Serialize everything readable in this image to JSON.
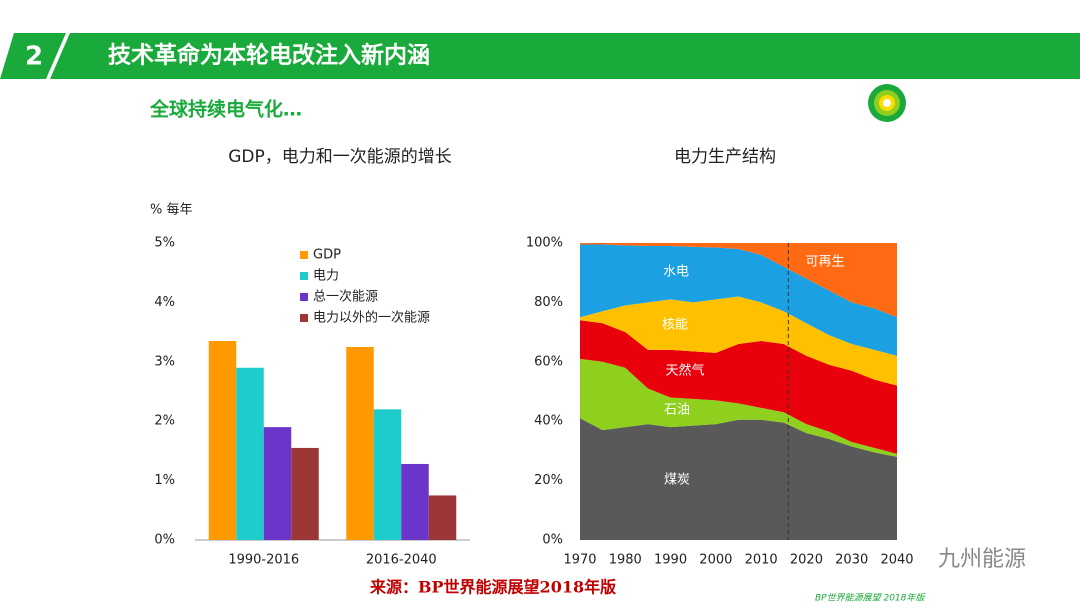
{
  "header": {
    "number": "2",
    "title": "技术革命为本轮电改注入新内涵"
  },
  "subtitle": "全球持续电气化…",
  "source": "来源：BP世界能源展望2018年版",
  "footnote": "BP世界能源展望 2018年版",
  "watermark": "九州能源",
  "chart_data": [
    {
      "type": "bar",
      "title": "GDP，电力和一次能源的增长",
      "y_label": "% 每年",
      "categories": [
        "1990-2016",
        "2016-2040"
      ],
      "series": [
        {
          "name": "GDP",
          "color": "#ff9900",
          "values": [
            3.35,
            3.25
          ]
        },
        {
          "name": "电力",
          "color": "#1fcccc",
          "values": [
            2.9,
            2.2
          ]
        },
        {
          "name": "总一次能源",
          "color": "#6a35c8",
          "values": [
            1.9,
            1.28
          ]
        },
        {
          "name": "电力以外的一次能源",
          "color": "#9b3636",
          "values": [
            1.55,
            0.75
          ]
        }
      ],
      "ylim": [
        0,
        5
      ],
      "yticks": [
        {
          "value": 0,
          "label": "0%"
        },
        {
          "value": 1,
          "label": "1%"
        },
        {
          "value": 2,
          "label": "2%"
        },
        {
          "value": 3,
          "label": "3%"
        },
        {
          "value": 4,
          "label": "4%"
        },
        {
          "value": 5,
          "label": "5%"
        }
      ]
    },
    {
      "type": "stacked-area",
      "title": "电力生产结构",
      "x": [
        1970,
        1975,
        1980,
        1985,
        1990,
        1995,
        2000,
        2005,
        2010,
        2015,
        2020,
        2025,
        2030,
        2035,
        2040
      ],
      "series": [
        {
          "name": "煤炭",
          "color": "#595959",
          "values": [
            41,
            37,
            38,
            39,
            38,
            38.5,
            39,
            40.5,
            40.5,
            39.5,
            36,
            34,
            31.5,
            29.5,
            28
          ]
        },
        {
          "name": "石油",
          "color": "#8fcf1e",
          "values": [
            20,
            23,
            20,
            12,
            10,
            9,
            8,
            5.5,
            4,
            3.5,
            3,
            2.5,
            1.5,
            1.5,
            1
          ]
        },
        {
          "name": "天然气",
          "color": "#e8000b",
          "values": [
            13,
            13,
            12,
            13,
            16,
            16,
            16,
            20,
            22.5,
            23,
            23,
            22.5,
            24,
            23,
            23
          ]
        },
        {
          "name": "核能",
          "color": "#ffc000",
          "values": [
            1,
            4,
            9,
            16,
            17,
            16.5,
            18,
            16,
            13,
            11,
            11,
            10,
            9,
            10,
            10
          ]
        },
        {
          "name": "水电",
          "color": "#1ba1e2",
          "values": [
            24.5,
            22.5,
            20.2,
            19,
            18,
            18.7,
            17.5,
            16,
            16,
            15,
            15,
            15,
            14,
            14,
            13
          ]
        },
        {
          "name": "可再生",
          "color": "#ff6a13",
          "values": [
            0.5,
            0.5,
            0.8,
            1,
            1,
            1.3,
            1.5,
            2,
            4,
            8,
            12,
            16,
            20,
            22,
            25
          ]
        }
      ],
      "forecast_line": 2016,
      "xlim": [
        1970,
        2040
      ],
      "xticks": [
        1970,
        1980,
        1990,
        2000,
        2010,
        2020,
        2030,
        2040
      ],
      "ylim": [
        0,
        100
      ],
      "yticks": [
        {
          "value": 0,
          "label": "0%"
        },
        {
          "value": 20,
          "label": "20%"
        },
        {
          "value": 40,
          "label": "40%"
        },
        {
          "value": 60,
          "label": "60%"
        },
        {
          "value": 80,
          "label": "80%"
        },
        {
          "value": 100,
          "label": "100%"
        }
      ]
    }
  ]
}
